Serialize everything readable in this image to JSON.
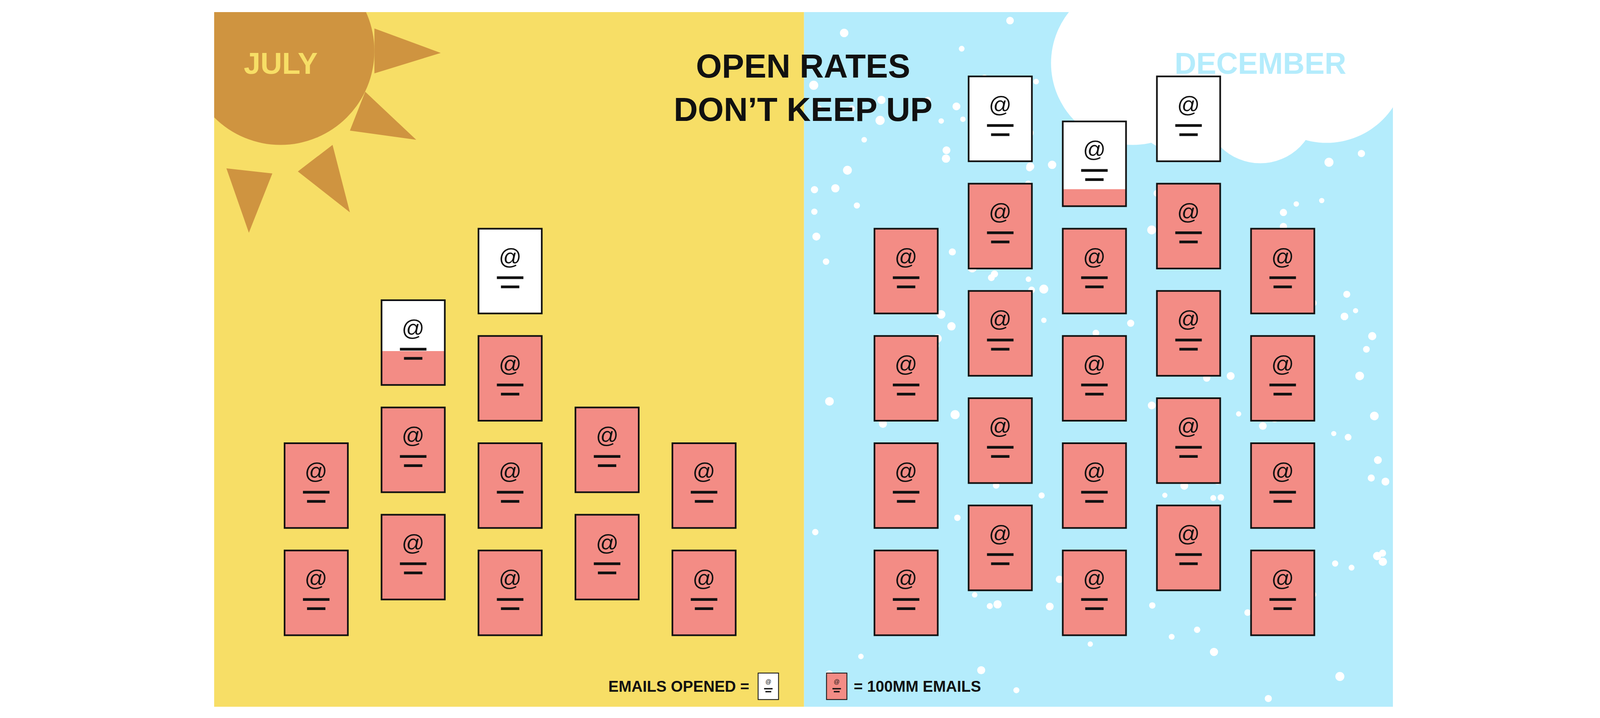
{
  "chart_data": {
    "type": "pictograph",
    "title": "OPEN RATES\nDON’T KEEP UP",
    "icon_text": "@",
    "color": "#f38c85",
    "tick_labels": false,
    "key": {
      "opened": "EMAILS OPENED =",
      "unit": "= 100MM EMAILS"
    },
    "series": [
      {
        "name": "JULY",
        "color": "#f7de66",
        "values": [
          2,
          3,
          4,
          2,
          2
        ],
        "opened": [
          0,
          0.6,
          1,
          0,
          0
        ]
      },
      {
        "name": "DECEMBER",
        "color": "#b4ecfc",
        "values": [
          4,
          5,
          5,
          5,
          4
        ],
        "opened": [
          0,
          1,
          0.8,
          1,
          0
        ]
      }
    ]
  }
}
